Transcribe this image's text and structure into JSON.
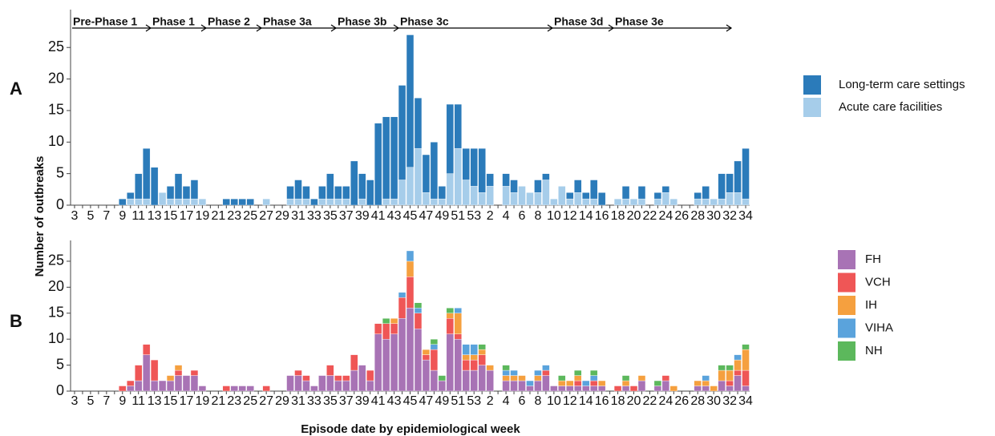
{
  "chart_data": [
    {
      "type": "stacked_bar",
      "panel": "A",
      "y_label": "Number of outbreaks",
      "annotations": [
        "Pre-Phase 1",
        "Phase 1",
        "Phase 2",
        "Phase 3a",
        "Phase 3b",
        "Phase 3c",
        "Phase 3d",
        "Phase 3e"
      ],
      "categories": [
        3,
        null,
        5,
        null,
        7,
        null,
        9,
        null,
        11,
        null,
        13,
        null,
        15,
        null,
        17,
        null,
        19,
        null,
        21,
        null,
        23,
        null,
        25,
        null,
        27,
        null,
        29,
        null,
        31,
        null,
        33,
        null,
        35,
        null,
        37,
        null,
        39,
        null,
        41,
        null,
        43,
        null,
        45,
        null,
        47,
        null,
        49,
        null,
        51,
        null,
        53,
        null,
        2,
        null,
        4,
        null,
        6,
        null,
        8,
        null,
        10,
        null,
        12,
        null,
        14,
        null,
        16,
        null,
        18,
        null,
        20,
        null,
        22,
        null,
        24,
        null,
        26,
        null,
        28,
        null,
        30,
        null,
        32,
        null,
        34
      ],
      "stack_from": "last",
      "series": [
        {
          "name": "Long-term care settings",
          "color": "#2b7bba",
          "values": [
            0,
            0,
            0,
            0,
            0,
            0,
            1,
            1,
            4,
            8,
            6,
            0,
            2,
            4,
            2,
            3,
            0,
            0,
            0,
            1,
            1,
            1,
            1,
            0,
            0,
            0,
            0,
            2,
            3,
            2,
            1,
            2,
            4,
            2,
            2,
            7,
            4,
            4,
            13,
            13,
            13,
            15,
            21,
            8,
            6,
            9,
            2,
            11,
            7,
            5,
            6,
            7,
            2,
            0,
            2,
            2,
            0,
            0,
            2,
            1,
            0,
            0,
            1,
            2,
            1,
            3,
            2,
            0,
            0,
            2,
            0,
            2,
            0,
            1,
            1,
            0,
            0,
            0,
            1,
            2,
            0,
            4,
            3,
            5,
            8
          ]
        },
        {
          "name": "Acute care facilities",
          "color": "#a6cdea",
          "values": [
            0,
            0,
            0,
            0,
            0,
            0,
            0,
            1,
            1,
            1,
            0,
            2,
            1,
            1,
            1,
            1,
            1,
            0,
            0,
            0,
            0,
            0,
            0,
            0,
            1,
            0,
            0,
            1,
            1,
            1,
            0,
            1,
            1,
            1,
            1,
            0,
            1,
            0,
            0,
            1,
            1,
            4,
            6,
            9,
            2,
            1,
            1,
            5,
            9,
            4,
            3,
            2,
            3,
            0,
            3,
            2,
            3,
            2,
            2,
            4,
            1,
            3,
            1,
            2,
            1,
            1,
            0,
            0,
            1,
            1,
            1,
            1,
            0,
            1,
            2,
            1,
            0,
            0,
            1,
            1,
            1,
            1,
            2,
            2,
            1
          ]
        }
      ],
      "ylim": [
        0,
        31
      ],
      "yticks": [
        0,
        5,
        10,
        15,
        20,
        25
      ]
    },
    {
      "type": "stacked_bar",
      "panel": "B",
      "x_label": "Episode date by epidemiological week",
      "categories": [
        3,
        null,
        5,
        null,
        7,
        null,
        9,
        null,
        11,
        null,
        13,
        null,
        15,
        null,
        17,
        null,
        19,
        null,
        21,
        null,
        23,
        null,
        25,
        null,
        27,
        null,
        29,
        null,
        31,
        null,
        33,
        null,
        35,
        null,
        37,
        null,
        39,
        null,
        41,
        null,
        43,
        null,
        45,
        null,
        47,
        null,
        49,
        null,
        51,
        null,
        53,
        null,
        2,
        null,
        4,
        null,
        6,
        null,
        8,
        null,
        10,
        null,
        12,
        null,
        14,
        null,
        16,
        null,
        18,
        null,
        20,
        null,
        22,
        null,
        24,
        null,
        26,
        null,
        28,
        null,
        30,
        null,
        32,
        null,
        34
      ],
      "stack_from": "first",
      "series": [
        {
          "name": "FH",
          "color": "#a873b5",
          "values": [
            0,
            0,
            0,
            0,
            0,
            0,
            0,
            1,
            2,
            7,
            2,
            2,
            2,
            3,
            3,
            3,
            1,
            0,
            0,
            0,
            1,
            1,
            1,
            0,
            0,
            0,
            0,
            3,
            3,
            2,
            1,
            3,
            3,
            2,
            2,
            4,
            5,
            2,
            11,
            10,
            11,
            14,
            16,
            12,
            6,
            4,
            2,
            11,
            10,
            4,
            4,
            5,
            4,
            0,
            2,
            2,
            2,
            1,
            2,
            3,
            1,
            1,
            1,
            1,
            1,
            1,
            1,
            0,
            0,
            1,
            0,
            2,
            0,
            1,
            2,
            0,
            0,
            0,
            1,
            1,
            0,
            2,
            1,
            3,
            1
          ]
        },
        {
          "name": "VCH",
          "color": "#ef5656",
          "values": [
            0,
            0,
            0,
            0,
            0,
            0,
            1,
            1,
            3,
            2,
            4,
            0,
            0,
            1,
            0,
            1,
            0,
            0,
            0,
            1,
            0,
            0,
            0,
            0,
            1,
            0,
            0,
            0,
            1,
            1,
            0,
            0,
            2,
            1,
            1,
            3,
            0,
            2,
            2,
            3,
            2,
            4,
            6,
            3,
            1,
            4,
            0,
            3,
            1,
            2,
            2,
            2,
            0,
            0,
            0,
            0,
            0,
            0,
            0,
            1,
            0,
            0,
            0,
            1,
            0,
            1,
            0,
            0,
            1,
            0,
            1,
            0,
            0,
            0,
            1,
            0,
            0,
            0,
            0,
            0,
            0,
            0,
            1,
            1,
            3
          ]
        },
        {
          "name": "IH",
          "color": "#f5a03f",
          "values": [
            0,
            0,
            0,
            0,
            0,
            0,
            0,
            0,
            0,
            0,
            0,
            0,
            1,
            1,
            0,
            0,
            0,
            0,
            0,
            0,
            0,
            0,
            0,
            0,
            0,
            0,
            0,
            0,
            0,
            0,
            0,
            0,
            0,
            0,
            0,
            0,
            0,
            0,
            0,
            0,
            1,
            0,
            3,
            0,
            1,
            0,
            0,
            1,
            4,
            1,
            1,
            1,
            1,
            0,
            1,
            1,
            1,
            0,
            1,
            0,
            0,
            1,
            1,
            1,
            0,
            0,
            1,
            0,
            0,
            1,
            0,
            1,
            0,
            0,
            0,
            1,
            0,
            0,
            1,
            1,
            1,
            2,
            2,
            2,
            4
          ]
        },
        {
          "name": "VIHA",
          "color": "#5aa3dc",
          "values": [
            0,
            0,
            0,
            0,
            0,
            0,
            0,
            0,
            0,
            0,
            0,
            0,
            0,
            0,
            0,
            0,
            0,
            0,
            0,
            0,
            0,
            0,
            0,
            0,
            0,
            0,
            0,
            0,
            0,
            0,
            0,
            0,
            0,
            0,
            0,
            0,
            0,
            0,
            0,
            0,
            0,
            1,
            2,
            1,
            0,
            1,
            0,
            0,
            1,
            2,
            2,
            0,
            0,
            0,
            1,
            1,
            0,
            1,
            1,
            1,
            0,
            0,
            0,
            0,
            1,
            1,
            0,
            0,
            0,
            0,
            0,
            0,
            0,
            0,
            0,
            0,
            0,
            0,
            0,
            1,
            0,
            0,
            0,
            1,
            0
          ]
        },
        {
          "name": "NH",
          "color": "#5cb85c",
          "values": [
            0,
            0,
            0,
            0,
            0,
            0,
            0,
            0,
            0,
            0,
            0,
            0,
            0,
            0,
            0,
            0,
            0,
            0,
            0,
            0,
            0,
            0,
            0,
            0,
            0,
            0,
            0,
            0,
            0,
            0,
            0,
            0,
            0,
            0,
            0,
            0,
            0,
            0,
            0,
            1,
            0,
            0,
            0,
            1,
            0,
            1,
            1,
            1,
            0,
            0,
            0,
            1,
            0,
            0,
            1,
            0,
            0,
            0,
            0,
            0,
            0,
            1,
            0,
            1,
            0,
            1,
            0,
            0,
            0,
            1,
            0,
            0,
            0,
            1,
            0,
            0,
            0,
            0,
            0,
            0,
            0,
            1,
            1,
            0,
            1
          ]
        }
      ],
      "ylim": [
        0,
        29
      ],
      "yticks": [
        0,
        5,
        10,
        15,
        20,
        25
      ]
    }
  ]
}
